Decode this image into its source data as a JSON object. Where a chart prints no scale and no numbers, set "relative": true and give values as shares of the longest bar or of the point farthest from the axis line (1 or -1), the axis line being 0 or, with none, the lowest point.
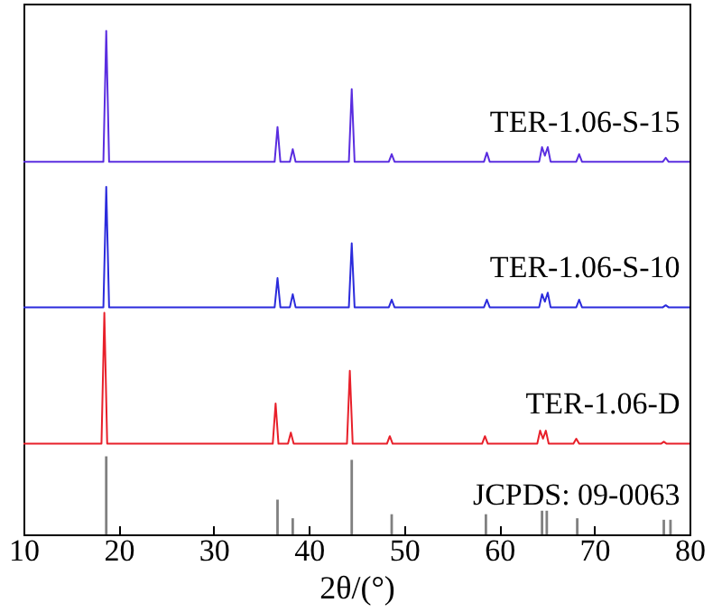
{
  "chart_data": {
    "type": "line",
    "relative": true,
    "xlabel": "2θ/(°)",
    "xlim": [
      10,
      80
    ],
    "xticks": [
      10,
      20,
      30,
      40,
      50,
      60,
      70,
      80
    ],
    "tick_labels": "x",
    "marker": "none",
    "line_style": "solid",
    "series": [
      {
        "name": "TER-1.06-S-15",
        "color": "#5a2de0",
        "x": [
          10,
          18.4,
          18.7,
          19.0,
          36.4,
          36.7,
          37.0,
          38.0,
          38.3,
          38.6,
          44.2,
          44.5,
          44.8,
          48.4,
          48.7,
          49.0,
          58.4,
          58.7,
          59.0,
          64.2,
          64.5,
          64.8,
          65.1,
          65.4,
          68.1,
          68.4,
          68.7,
          77.2,
          77.5,
          77.8,
          80
        ],
        "values": [
          0.74,
          0.74,
          1.0,
          0.74,
          0.74,
          0.809,
          0.74,
          0.74,
          0.765,
          0.74,
          0.74,
          0.884,
          0.74,
          0.74,
          0.755,
          0.74,
          0.74,
          0.758,
          0.74,
          0.74,
          0.769,
          0.752,
          0.769,
          0.74,
          0.74,
          0.755,
          0.74,
          0.74,
          0.748,
          0.74,
          0.74
        ]
      },
      {
        "name": "TER-1.06-S-10",
        "color": "#2b2bdc",
        "x": [
          10,
          18.4,
          18.7,
          19.0,
          36.4,
          36.7,
          37.0,
          38.0,
          38.3,
          38.6,
          44.2,
          44.5,
          44.8,
          48.4,
          48.7,
          49.0,
          58.4,
          58.7,
          59.0,
          64.2,
          64.5,
          64.8,
          65.1,
          65.4,
          68.1,
          68.4,
          68.7,
          77.2,
          77.5,
          77.8,
          80
        ],
        "values": [
          0.451,
          0.451,
          0.69,
          0.451,
          0.451,
          0.509,
          0.451,
          0.451,
          0.477,
          0.451,
          0.451,
          0.578,
          0.451,
          0.451,
          0.466,
          0.451,
          0.451,
          0.466,
          0.451,
          0.451,
          0.477,
          0.462,
          0.48,
          0.451,
          0.451,
          0.466,
          0.451,
          0.451,
          0.455,
          0.451,
          0.451
        ]
      },
      {
        "name": "TER-1.06-D",
        "color": "#e8202a",
        "x": [
          10,
          18.2,
          18.5,
          18.8,
          36.2,
          36.5,
          36.8,
          37.8,
          38.1,
          38.4,
          44.0,
          44.3,
          44.6,
          48.2,
          48.5,
          48.8,
          58.2,
          58.5,
          58.8,
          64.0,
          64.3,
          64.6,
          64.9,
          65.2,
          67.8,
          68.1,
          68.4,
          77.0,
          77.3,
          77.6,
          80
        ],
        "values": [
          0.18,
          0.18,
          0.44,
          0.18,
          0.18,
          0.26,
          0.18,
          0.18,
          0.202,
          0.18,
          0.18,
          0.325,
          0.18,
          0.18,
          0.195,
          0.18,
          0.18,
          0.195,
          0.18,
          0.18,
          0.206,
          0.19,
          0.206,
          0.18,
          0.18,
          0.19,
          0.18,
          0.18,
          0.184,
          0.18,
          0.18
        ]
      },
      {
        "name": "JCPDS: 09-0063",
        "type": "bar",
        "color": "#808080",
        "x": [
          18.7,
          36.7,
          38.3,
          44.5,
          48.7,
          58.6,
          64.5,
          65.0,
          68.2,
          77.3,
          78.0
        ],
        "values": [
          0.155,
          0.069,
          0.032,
          0.148,
          0.04,
          0.04,
          0.047,
          0.047,
          0.032,
          0.029,
          0.029
        ]
      }
    ]
  }
}
